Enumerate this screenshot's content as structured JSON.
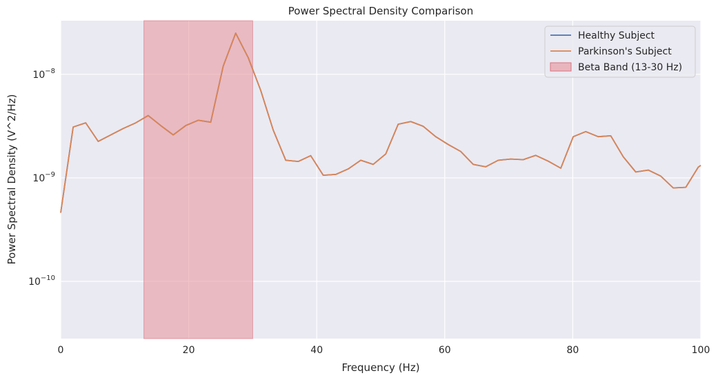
{
  "chart_data": {
    "type": "line",
    "title": "Power Spectral Density Comparison",
    "xlabel": "Frequency (Hz)",
    "ylabel": "Power Spectral Density (V^2/Hz)",
    "xlim": [
      0,
      100
    ],
    "ylim": [
      2.8e-11,
      3.3e-08
    ],
    "yscale": "log",
    "grid": true,
    "legend_position": "top-right",
    "x_ticks": [
      0,
      20,
      40,
      60,
      80,
      100
    ],
    "x_tick_labels": [
      "0",
      "20",
      "40",
      "60",
      "80",
      "100"
    ],
    "y_ticks": [
      1e-10,
      1e-09,
      1e-08
    ],
    "y_tick_labels": [
      {
        "base": "10",
        "exp": "−10"
      },
      {
        "base": "10",
        "exp": "−9"
      },
      {
        "base": "10",
        "exp": "−8"
      }
    ],
    "shaded_band": {
      "name": "Beta Band (13-30 Hz)",
      "x_start": 13,
      "x_end": 30,
      "color": "#e8919a"
    },
    "x": [
      0,
      1.95,
      3.91,
      5.86,
      7.81,
      9.77,
      11.72,
      13.67,
      15.63,
      17.58,
      19.53,
      21.48,
      23.44,
      25.39,
      27.34,
      29.3,
      31.25,
      33.2,
      35.16,
      37.11,
      39.06,
      41.02,
      42.97,
      44.92,
      46.88,
      48.83,
      50.78,
      52.73,
      54.69,
      56.64,
      58.59,
      60.55,
      62.5,
      64.45,
      66.41,
      68.36,
      70.31,
      72.27,
      74.22,
      76.17,
      78.13,
      80.08,
      82.03,
      83.98,
      85.94,
      87.89,
      89.84,
      91.8,
      93.75,
      95.7,
      97.66,
      99.61,
      100
    ],
    "series": [
      {
        "name": "Healthy Subject",
        "color": "#4c72b0",
        "values": [
          4.6e-10,
          3.1e-09,
          3.4e-09,
          2.25e-09,
          2.6e-09,
          3e-09,
          3.4e-09,
          4e-09,
          3.2e-09,
          2.6e-09,
          3.2e-09,
          3.6e-09,
          3.45e-09,
          1.2e-08,
          2.5e-08,
          1.45e-08,
          7e-09,
          2.9e-09,
          1.48e-09,
          1.44e-09,
          1.64e-09,
          1.06e-09,
          1.08e-09,
          1.22e-09,
          1.48e-09,
          1.35e-09,
          1.7e-09,
          3.3e-09,
          3.5e-09,
          3.15e-09,
          2.5e-09,
          2.1e-09,
          1.8e-09,
          1.35e-09,
          1.28e-09,
          1.48e-09,
          1.52e-09,
          1.5e-09,
          1.65e-09,
          1.45e-09,
          1.24e-09,
          2.5e-09,
          2.8e-09,
          2.5e-09,
          2.55e-09,
          1.6e-09,
          1.14e-09,
          1.19e-09,
          1.04e-09,
          8e-10,
          8.1e-10,
          1.27e-09,
          1.32e-09
        ]
      },
      {
        "name": "Parkinson's Subject",
        "color": "#dd8452",
        "values": [
          4.6e-10,
          3.1e-09,
          3.4e-09,
          2.25e-09,
          2.6e-09,
          3e-09,
          3.4e-09,
          4e-09,
          3.2e-09,
          2.6e-09,
          3.2e-09,
          3.6e-09,
          3.45e-09,
          1.2e-08,
          2.5e-08,
          1.45e-08,
          7e-09,
          2.9e-09,
          1.48e-09,
          1.44e-09,
          1.64e-09,
          1.06e-09,
          1.08e-09,
          1.22e-09,
          1.48e-09,
          1.35e-09,
          1.7e-09,
          3.3e-09,
          3.5e-09,
          3.15e-09,
          2.5e-09,
          2.1e-09,
          1.8e-09,
          1.35e-09,
          1.28e-09,
          1.48e-09,
          1.52e-09,
          1.5e-09,
          1.65e-09,
          1.45e-09,
          1.24e-09,
          2.5e-09,
          2.8e-09,
          2.5e-09,
          2.55e-09,
          1.6e-09,
          1.14e-09,
          1.19e-09,
          1.04e-09,
          8e-10,
          8.1e-10,
          1.27e-09,
          1.32e-09
        ]
      }
    ],
    "legend": [
      {
        "label": "Healthy Subject",
        "kind": "line",
        "color": "#4c72b0"
      },
      {
        "label": "Parkinson's Subject",
        "kind": "line",
        "color": "#dd8452"
      },
      {
        "label": "Beta Band (13-30 Hz)",
        "kind": "patch",
        "color": "#e8919a"
      }
    ],
    "colors": {
      "plot_background": "#eaeaf2",
      "grid": "#ffffff"
    }
  }
}
